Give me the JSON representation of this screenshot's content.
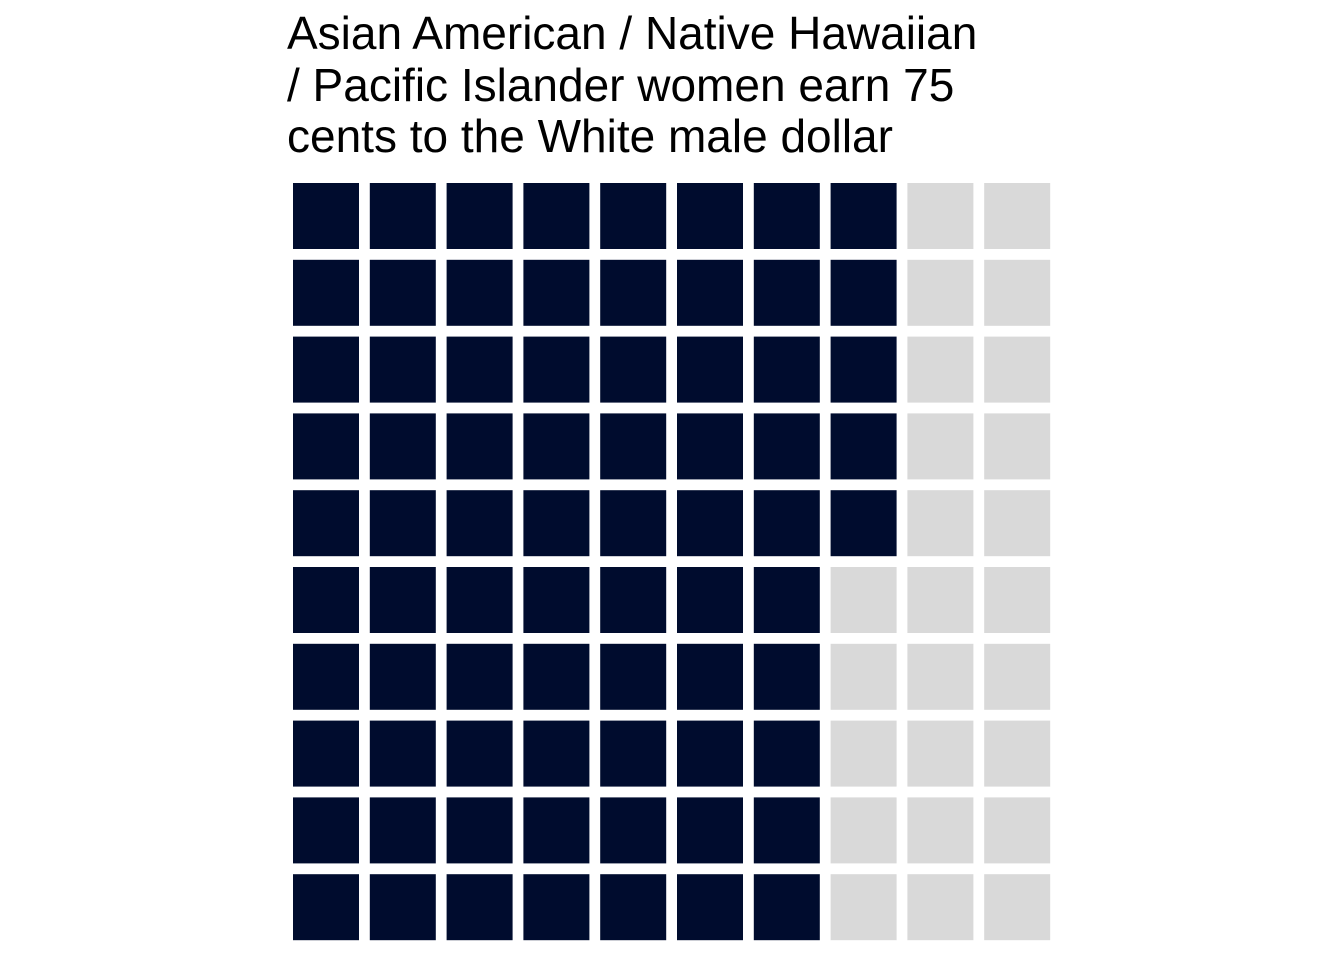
{
  "chart_data": {
    "type": "waffle",
    "title": "Asian American / Native Hawaiian\n/ Pacific Islander women earn 75\ncents to the White male dollar",
    "grid": {
      "rows": 10,
      "cols": 10
    },
    "filled": 75,
    "total": 100,
    "fill_order": "column-major, top to bottom within each column, left to right",
    "colors": {
      "filled": "#000c2e",
      "empty": "#d9d9d9",
      "background": "#ffffff"
    },
    "legend": "none",
    "axes": "none"
  }
}
